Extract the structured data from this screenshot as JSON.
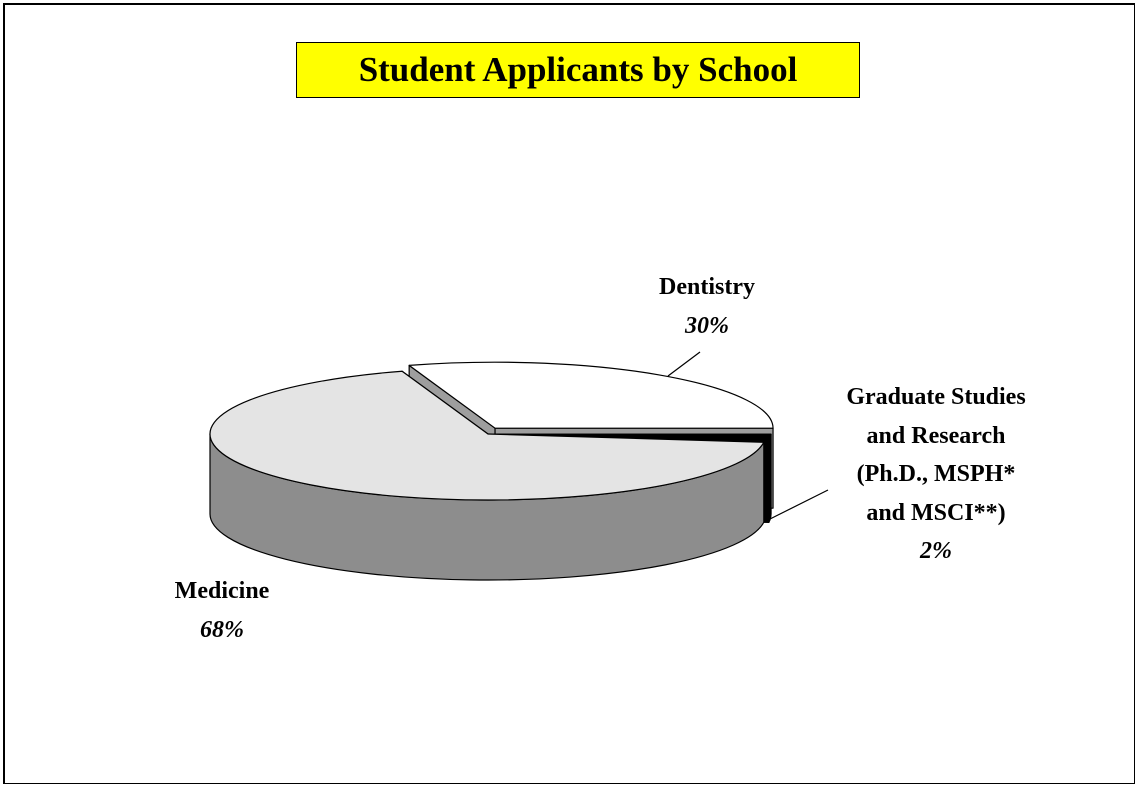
{
  "chart_data": {
    "type": "pie3d",
    "title": "Student Applicants by School",
    "categories": [
      "Dentistry",
      "Graduate Studies and Research (Ph.D., MSPH* and MSCI**)",
      "Medicine"
    ],
    "values": [
      30,
      2,
      68
    ],
    "value_labels": [
      "30%",
      "2%",
      "68%"
    ],
    "colors": [
      "#ffffff",
      "#000000",
      "#e4e4e4"
    ]
  }
}
